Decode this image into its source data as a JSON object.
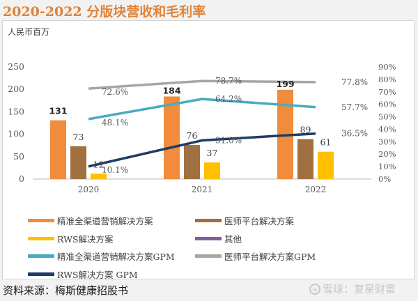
{
  "title": "2020-2022 分版块营收和毛利率",
  "source": "资料来源：梅斯健康招股书",
  "watermark": {
    "icon": "snowball-logo-icon",
    "text": "雪球：复星财富"
  },
  "chart_data": {
    "type": "bar",
    "title": "2020-2022 分版块营收和毛利率",
    "unit_label": "人民币百万",
    "categories": [
      "2020",
      "2021",
      "2022"
    ],
    "y_left": {
      "min": 0,
      "max": 250,
      "ticks": [
        "0",
        "50",
        "100",
        "150",
        "200",
        "250"
      ]
    },
    "y_right": {
      "min": 0,
      "max": 90,
      "ticks": [
        "0%",
        "10%",
        "20%",
        "30%",
        "40%",
        "50%",
        "60%",
        "70%",
        "80%",
        "90%"
      ]
    },
    "grid": false,
    "legend_position": "bottom",
    "bar_series": [
      {
        "name": "精准全渠道营销解决方案",
        "color": "#f08c3c",
        "values": [
          131,
          184,
          199
        ],
        "labels": [
          "131",
          "184",
          "199"
        ]
      },
      {
        "name": "医师平台解决方案",
        "color": "#a07040",
        "values": [
          73,
          76,
          89
        ],
        "labels": [
          "73",
          "76",
          "89"
        ]
      },
      {
        "name": "RWS解决方案",
        "color": "#ffc000",
        "values": [
          12,
          37,
          61
        ],
        "labels": [
          "12",
          "37",
          "61"
        ]
      },
      {
        "name": "其他",
        "color": "#7f5fa0",
        "values": [
          0,
          0,
          0
        ],
        "labels": []
      }
    ],
    "line_series": [
      {
        "name": "精准全渠道营销解决方案GPM",
        "color": "#4aabc0",
        "values": [
          48.1,
          64.2,
          57.7
        ],
        "labels": [
          "48.1%",
          "64.2%",
          "57.7%"
        ]
      },
      {
        "name": "医师平台解决方案GPM",
        "color": "#a6a6a6",
        "values": [
          72.6,
          78.7,
          77.8
        ],
        "labels": [
          "72.6%",
          "78.7%",
          "77.8%"
        ]
      },
      {
        "name": "RWS解决方案 GPM",
        "color": "#1f3c64",
        "values": [
          10.1,
          31.0,
          36.5
        ],
        "labels": [
          "10.1%",
          "31.0%",
          "36.5%"
        ]
      }
    ],
    "legend": [
      {
        "label": "精准全渠道营销解决方案",
        "color": "#f08c3c"
      },
      {
        "label": "医师平台解决方案",
        "color": "#a07040"
      },
      {
        "label": "RWS解决方案",
        "color": "#ffc000"
      },
      {
        "label": "其他",
        "color": "#7f5fa0"
      },
      {
        "label": "精准全渠道营销解决方案GPM",
        "color": "#4aabc0"
      },
      {
        "label": "医师平台解决方案GPM",
        "color": "#a6a6a6"
      },
      {
        "label": "RWS解决方案 GPM",
        "color": "#1f3c64"
      }
    ]
  }
}
